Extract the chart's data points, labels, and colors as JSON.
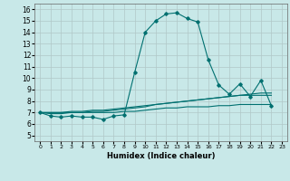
{
  "title": "",
  "xlabel": "Humidex (Indice chaleur)",
  "ylabel": "",
  "bg_color": "#c8e8e8",
  "grid_color": "#b0c8c8",
  "line_color": "#007070",
  "xlim": [
    -0.5,
    23.5
  ],
  "ylim": [
    4.5,
    16.5
  ],
  "xticks": [
    0,
    1,
    2,
    3,
    4,
    5,
    6,
    7,
    8,
    9,
    10,
    11,
    12,
    13,
    14,
    15,
    16,
    17,
    18,
    19,
    20,
    21,
    22,
    23
  ],
  "yticks": [
    5,
    6,
    7,
    8,
    9,
    10,
    11,
    12,
    13,
    14,
    15,
    16
  ],
  "series": [
    [
      7.0,
      6.7,
      6.6,
      6.7,
      6.6,
      6.6,
      6.4,
      6.7,
      6.8,
      10.5,
      14.0,
      15.0,
      15.6,
      15.7,
      15.2,
      14.9,
      11.6,
      9.4,
      8.6,
      9.5,
      8.4,
      9.8,
      7.6,
      null
    ],
    [
      7.0,
      6.9,
      6.9,
      7.0,
      7.0,
      7.1,
      7.1,
      7.2,
      7.3,
      7.4,
      7.5,
      7.7,
      7.8,
      7.9,
      8.0,
      8.1,
      8.2,
      8.3,
      8.4,
      8.5,
      8.6,
      8.7,
      8.7,
      null
    ],
    [
      7.0,
      7.0,
      7.0,
      7.1,
      7.1,
      7.2,
      7.2,
      7.3,
      7.4,
      7.5,
      7.6,
      7.7,
      7.8,
      7.9,
      8.0,
      8.1,
      8.2,
      8.3,
      8.4,
      8.5,
      8.5,
      8.5,
      8.5,
      null
    ],
    [
      7.0,
      7.0,
      7.0,
      7.0,
      7.0,
      7.0,
      7.0,
      7.0,
      7.1,
      7.1,
      7.2,
      7.3,
      7.4,
      7.4,
      7.5,
      7.5,
      7.5,
      7.6,
      7.6,
      7.7,
      7.7,
      7.7,
      7.7,
      null
    ]
  ]
}
